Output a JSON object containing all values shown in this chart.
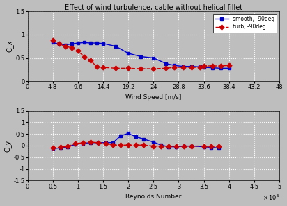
{
  "title": "Effect of wind turbulence, cable without helical fillet",
  "top": {
    "xlabel": "Wind Speed [m/s]",
    "ylabel": "C_x",
    "xlim": [
      0,
      48
    ],
    "ylim": [
      0,
      1.5
    ],
    "xticks": [
      0,
      4.8,
      9.6,
      14.4,
      19.2,
      24,
      28.8,
      33.6,
      38.4,
      43.2,
      48
    ],
    "xticklabels": [
      "0",
      "4.8",
      "9.6",
      "14.4",
      "19.2",
      "24",
      "28.8",
      "33.6",
      "38.4",
      "43.2",
      "48"
    ],
    "yticks": [
      0,
      0.5,
      1.0,
      1.5
    ],
    "yticklabels": [
      "0",
      "0.5",
      "1",
      "1.5"
    ],
    "smooth_x": [
      4.8,
      6.0,
      7.2,
      8.4,
      9.6,
      10.8,
      12.0,
      13.2,
      14.4,
      16.8,
      19.2,
      21.6,
      24.0,
      26.4,
      28.0,
      29.6,
      31.2,
      32.8,
      33.6,
      35.2,
      36.8,
      38.4
    ],
    "smooth_y": [
      0.83,
      0.8,
      0.78,
      0.8,
      0.82,
      0.83,
      0.82,
      0.82,
      0.81,
      0.75,
      0.6,
      0.53,
      0.5,
      0.38,
      0.34,
      0.32,
      0.32,
      0.31,
      0.3,
      0.29,
      0.28,
      0.28
    ],
    "turb_x": [
      4.8,
      6.0,
      7.2,
      8.4,
      9.6,
      10.8,
      12.0,
      13.2,
      14.4,
      16.8,
      19.2,
      21.6,
      24.0,
      26.4,
      28.0,
      29.6,
      31.2,
      32.8,
      33.6,
      35.2,
      36.8,
      38.4
    ],
    "turb_y": [
      0.88,
      0.8,
      0.75,
      0.72,
      0.65,
      0.53,
      0.45,
      0.31,
      0.3,
      0.28,
      0.28,
      0.27,
      0.27,
      0.28,
      0.3,
      0.3,
      0.3,
      0.3,
      0.33,
      0.33,
      0.33,
      0.34
    ]
  },
  "bottom": {
    "xlabel": "Reynolds Number",
    "ylabel": "C_y",
    "xlim": [
      0,
      500000.0
    ],
    "ylim": [
      -1.5,
      1.5
    ],
    "xticks": [
      0,
      50000.0,
      100000.0,
      150000.0,
      200000.0,
      250000.0,
      300000.0,
      350000.0,
      400000.0,
      450000.0,
      500000.0
    ],
    "xticklabels": [
      "0",
      "0.5",
      "1",
      "1.5",
      "2",
      "2.5",
      "3",
      "3.5",
      "4",
      "4.5",
      "5"
    ],
    "yticks": [
      -1.5,
      -1.0,
      -0.5,
      0,
      0.5,
      1.0,
      1.5
    ],
    "yticklabels": [
      "-1.5",
      "-1",
      "-0.5",
      "0",
      "0.5",
      "1",
      "1.5"
    ],
    "smooth_x": [
      50000.0,
      65000.0,
      80000.0,
      95000.0,
      110000.0,
      125000.0,
      140000.0,
      155000.0,
      170000.0,
      185000.0,
      200000.0,
      215000.0,
      230000.0,
      250000.0,
      265000.0,
      280000.0,
      295000.0,
      310000.0,
      325000.0,
      350000.0,
      365000.0,
      380000.0
    ],
    "smooth_y": [
      -0.13,
      -0.1,
      -0.05,
      0.05,
      0.1,
      0.12,
      0.13,
      0.12,
      0.13,
      0.42,
      0.52,
      0.38,
      0.28,
      0.15,
      0.02,
      -0.05,
      -0.05,
      -0.03,
      -0.02,
      -0.05,
      -0.08,
      -0.1
    ],
    "turb_x": [
      50000.0,
      65000.0,
      80000.0,
      95000.0,
      110000.0,
      125000.0,
      140000.0,
      155000.0,
      170000.0,
      185000.0,
      200000.0,
      215000.0,
      230000.0,
      250000.0,
      265000.0,
      280000.0,
      295000.0,
      310000.0,
      325000.0,
      350000.0,
      365000.0,
      380000.0
    ],
    "turb_y": [
      -0.1,
      -0.07,
      -0.03,
      0.08,
      0.12,
      0.15,
      0.12,
      0.1,
      0.02,
      0.02,
      0.02,
      0.02,
      0.02,
      -0.02,
      -0.02,
      -0.03,
      -0.03,
      -0.02,
      -0.02,
      -0.02,
      -0.03,
      -0.03
    ]
  },
  "smooth_color": "#0000cc",
  "turb_color": "#cc0000",
  "legend_smooth": "smooth, -90deg",
  "legend_turb": "turb, -90deg",
  "bg_color": "#bebebe",
  "grid_color": "white"
}
